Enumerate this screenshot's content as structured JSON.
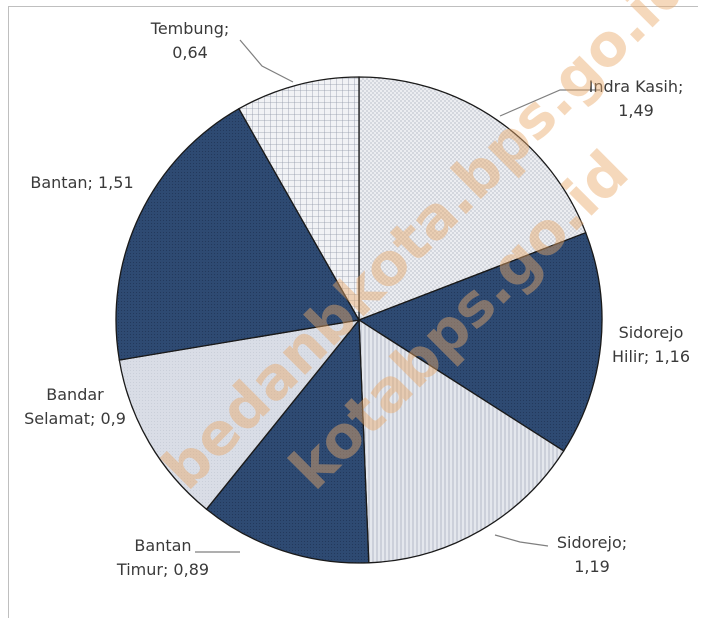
{
  "chart_data": {
    "type": "pie",
    "slices": [
      {
        "label_lines": [
          "Indra Kasih;",
          "1,49"
        ],
        "value": 1.49,
        "pattern": "dots-light"
      },
      {
        "label_lines": [
          "Sidorejo",
          "Hilir; 1,16"
        ],
        "value": 1.16,
        "pattern": "dark-navy"
      },
      {
        "label_lines": [
          "Sidorejo;",
          "1,19"
        ],
        "value": 1.19,
        "pattern": "stripes-light"
      },
      {
        "label_lines": [
          "Bantan",
          "Timur; 0,89"
        ],
        "value": 0.89,
        "pattern": "dark-navy"
      },
      {
        "label_lines": [
          "Bandar",
          "Selamat; 0,9"
        ],
        "value": 0.9,
        "pattern": "light-gray"
      },
      {
        "label_lines": [
          "Bantan; 1,51"
        ],
        "value": 1.51,
        "pattern": "dark-navy"
      },
      {
        "label_lines": [
          "Tembung;",
          "0,64"
        ],
        "value": 0.64,
        "pattern": "grid-light"
      }
    ],
    "start_angle_deg": 0,
    "direction": "clockwise",
    "legend": "none",
    "colors": {
      "dark": "#2e4a72",
      "light": "#e6e9ef",
      "stroke": "#1a1a1a"
    }
  },
  "watermark": {
    "text_a": "bedanbkota.bps.go.id",
    "text_b": "kotabps.go.id"
  }
}
